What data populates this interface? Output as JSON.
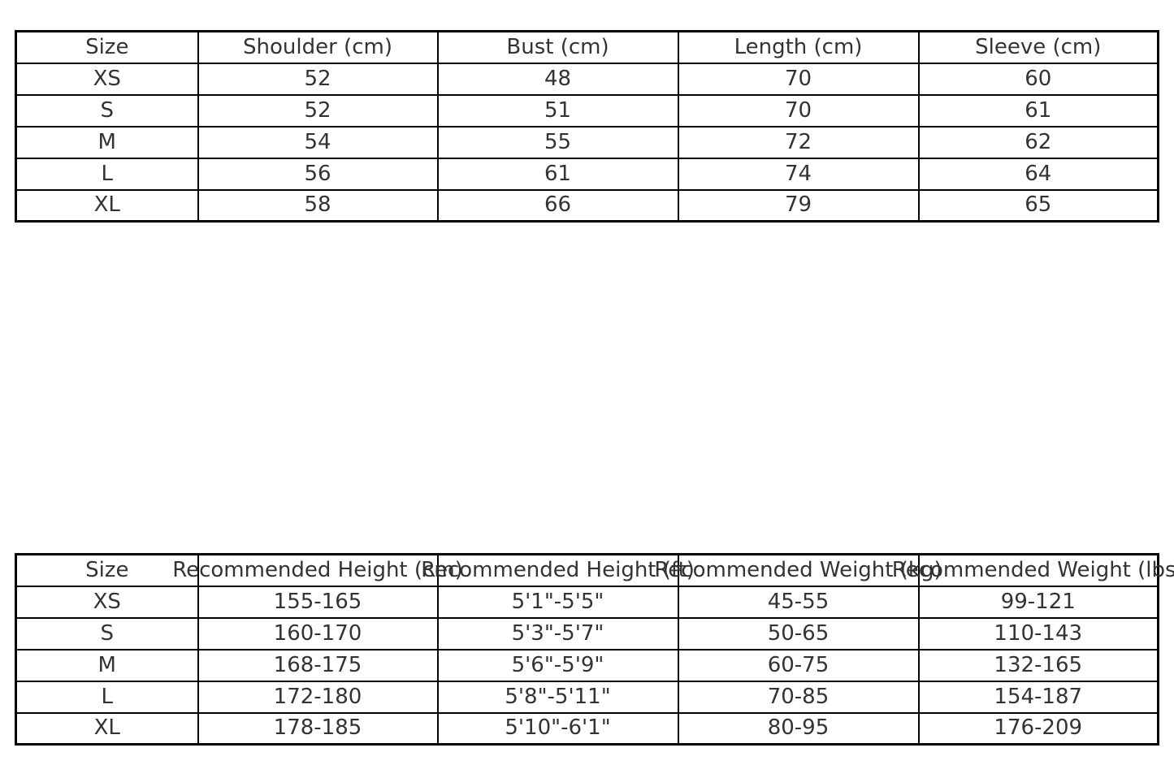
{
  "page": {
    "background": "#ffffff",
    "text_color": "#333333",
    "border_color": "#000000"
  },
  "chart_data": [
    {
      "type": "table",
      "name": "garment-measurements",
      "columns": [
        "Size",
        "Shoulder (cm)",
        "Bust (cm)",
        "Length (cm)",
        "Sleeve (cm)"
      ],
      "rows": [
        [
          "XS",
          "52",
          "48",
          "70",
          "60"
        ],
        [
          "S",
          "52",
          "51",
          "70",
          "61"
        ],
        [
          "M",
          "54",
          "55",
          "72",
          "62"
        ],
        [
          "L",
          "56",
          "61",
          "74",
          "64"
        ],
        [
          "XL",
          "58",
          "66",
          "79",
          "65"
        ]
      ]
    },
    {
      "type": "table",
      "name": "height-weight-recommendations",
      "columns": [
        "Size",
        "Recommended Height (cm)",
        "Recommended Height (ft)",
        "Recommended Weight (kg)",
        "Recommended Weight (lbs)"
      ],
      "rows": [
        [
          "XS",
          "155-165",
          "5'1\"-5'5\"",
          "45-55",
          "99-121"
        ],
        [
          "S",
          "160-170",
          "5'3\"-5'7\"",
          "50-65",
          "110-143"
        ],
        [
          "M",
          "168-175",
          "5'6\"-5'9\"",
          "60-75",
          "132-165"
        ],
        [
          "L",
          "172-180",
          "5'8\"-5'11\"",
          "70-85",
          "154-187"
        ],
        [
          "XL",
          "178-185",
          "5'10\"-6'1\"",
          "80-95",
          "176-209"
        ]
      ]
    }
  ]
}
